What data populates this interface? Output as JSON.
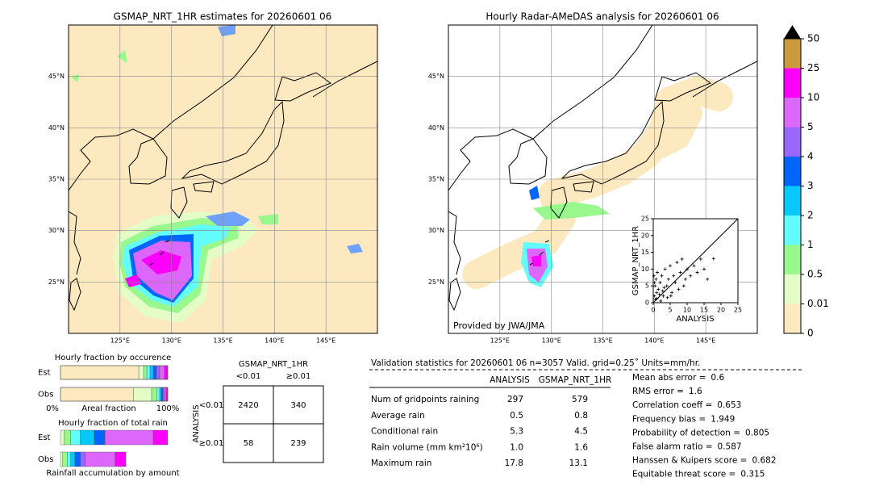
{
  "maps": [
    {
      "title": "GSMAP_NRT_1HR estimates for 20260601 06",
      "xlim": [
        120,
        150
      ],
      "ylim": [
        20,
        50
      ],
      "xticks": [
        {
          "value": 125,
          "label": "125°E"
        },
        {
          "value": 130,
          "label": "130°E"
        },
        {
          "value": 135,
          "label": "135°E"
        },
        {
          "value": 140,
          "label": "140°E"
        },
        {
          "value": 145,
          "label": "145°E"
        }
      ],
      "yticks": [
        {
          "value": 25,
          "label": "25°N"
        },
        {
          "value": 30,
          "label": "30°N"
        },
        {
          "value": 35,
          "label": "35°N"
        },
        {
          "value": 40,
          "label": "40°N"
        },
        {
          "value": 45,
          "label": "45°N"
        }
      ]
    },
    {
      "title": "Hourly Radar-AMeDAS analysis for 20260601 06",
      "xlim": [
        120,
        150
      ],
      "ylim": [
        20,
        50
      ],
      "xticks": [
        {
          "value": 125,
          "label": "125°E"
        },
        {
          "value": 130,
          "label": "130°E"
        },
        {
          "value": 135,
          "label": "135°E"
        },
        {
          "value": 140,
          "label": "140°E"
        },
        {
          "value": 145,
          "label": "145°E"
        }
      ],
      "yticks": [
        {
          "value": 25,
          "label": "25°N"
        },
        {
          "value": 30,
          "label": "30°N"
        },
        {
          "value": 35,
          "label": "35°N"
        },
        {
          "value": 40,
          "label": "40°N"
        },
        {
          "value": 45,
          "label": "45°N"
        }
      ],
      "credit": "Provided by JWA/JMA"
    }
  ],
  "colorbar": {
    "ticks": [
      0,
      0.01,
      0.5,
      1,
      2,
      3,
      4,
      5,
      10,
      25,
      50
    ],
    "colors": [
      "#fde9c0",
      "#e4fcc6",
      "#98f88e",
      "#63fcfc",
      "#06c8fb",
      "#0066fb",
      "#9a66fb",
      "#dd66fb",
      "#fc00fc",
      "#cc9a3c"
    ],
    "extend_color": "#000000"
  },
  "scatter": {
    "xlabel": "ANALYSIS",
    "ylabel": "GSMAP_NRT_1HR",
    "xlim": [
      0,
      25
    ],
    "ylim": [
      0,
      25
    ],
    "xticks": [
      0,
      5,
      10,
      15,
      20,
      25
    ],
    "yticks": [
      0,
      5,
      10,
      15,
      20,
      25
    ],
    "x": [
      0.3,
      0.5,
      0.8,
      1,
      1.2,
      1.5,
      2,
      2.5,
      3,
      3.5,
      4,
      4.5,
      5,
      5.5,
      6,
      6.5,
      7,
      7.5,
      8,
      8.5,
      9,
      9.5,
      10,
      11,
      12,
      13,
      14,
      15,
      16,
      17.8,
      0.6,
      1.8,
      2.2,
      3.2,
      4.2,
      0.2,
      0.4,
      1.1,
      2.8,
      5.2
    ],
    "y": [
      2,
      5,
      7,
      3,
      9,
      4,
      6,
      8,
      2,
      10,
      5,
      7,
      11,
      3,
      8,
      6,
      12,
      4,
      9,
      13,
      5,
      7,
      10,
      8,
      11,
      9,
      13,
      10,
      7,
      13.1,
      1,
      2.5,
      0.5,
      4.5,
      1.5,
      8,
      6,
      1.2,
      3.5,
      2
    ]
  },
  "occurrence": {
    "title": "Hourly fraction by occurence",
    "rows": [
      "Est",
      "Obs"
    ],
    "axis_labels": [
      "0%",
      "Areal fraction",
      "100%"
    ],
    "segments": [
      [
        73,
        4.5,
        3,
        3,
        3,
        3,
        3,
        4.5,
        3,
        0
      ],
      [
        68,
        17,
        5,
        2.5,
        1.5,
        1.5,
        1.5,
        1.5,
        1.5,
        0
      ]
    ]
  },
  "total_rain": {
    "title": "Hourly fraction of total rain",
    "rows": [
      "Est",
      "Obs"
    ],
    "footer": "Rainfall accumulation by amount",
    "segments": [
      [
        0,
        3.5,
        6,
        9,
        13,
        10,
        0,
        45,
        13.5,
        0
      ],
      [
        0,
        2,
        4.5,
        3,
        4,
        5,
        4.5,
        28,
        10,
        0
      ]
    ]
  },
  "contingency": {
    "title": "GSMAP_NRT_1HR",
    "col_labels": [
      "<0.01",
      "≥0.01"
    ],
    "row_title": "ANALYSIS",
    "row_labels": [
      "<0.01",
      "≥0.01"
    ],
    "cells": [
      [
        2420,
        340
      ],
      [
        58,
        239
      ]
    ]
  },
  "validation": {
    "title": "Validation statistics for 20260601 06  n=3057 Valid. grid=0.25˚ Units=mm/hr.",
    "columns": [
      "ANALYSIS",
      "GSMAP_NRT_1HR"
    ],
    "rows": [
      {
        "label": "Num of gridpoints raining",
        "values": [
          "297",
          "579"
        ]
      },
      {
        "label": "Average rain",
        "values": [
          "0.5",
          "0.8"
        ]
      },
      {
        "label": "Conditional rain",
        "values": [
          "5.3",
          "4.5"
        ]
      },
      {
        "label": "Rain volume (mm km²10⁶)",
        "values": [
          "1.0",
          "1.6"
        ]
      },
      {
        "label": "Maximum rain",
        "values": [
          "17.8",
          "13.1"
        ]
      }
    ],
    "scores": [
      {
        "label": "Mean abs error =",
        "value": "0.6"
      },
      {
        "label": "RMS error =",
        "value": "1.6"
      },
      {
        "label": "Correlation coeff =",
        "value": "0.653"
      },
      {
        "label": "Frequency bias =",
        "value": "1.949"
      },
      {
        "label": "Probability of detection =",
        "value": "0.805"
      },
      {
        "label": "False alarm ratio =",
        "value": "0.587"
      },
      {
        "label": "Hanssen & Kuipers score =",
        "value": "0.682"
      },
      {
        "label": "Equitable threat score =",
        "value": "0.315"
      }
    ]
  }
}
